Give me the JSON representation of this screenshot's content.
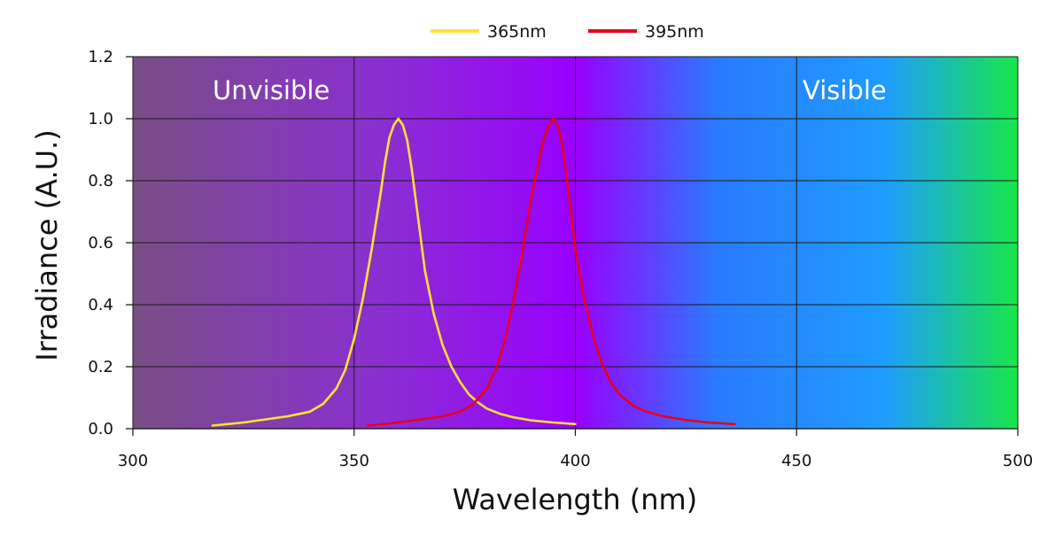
{
  "chart_data": {
    "type": "line",
    "xlabel": "Wavelength (nm)",
    "ylabel": "Irradiance (A.U.)",
    "xlim": [
      300,
      500
    ],
    "ylim": [
      0,
      1.2
    ],
    "x_ticks": [
      "300",
      "350",
      "400",
      "450",
      "500"
    ],
    "y_ticks": [
      "0.0",
      "0.2",
      "0.4",
      "0.6",
      "0.8",
      "1.0",
      "1.2"
    ],
    "grid": true,
    "legend_position": "top-center",
    "region_labels": [
      "Unvisible",
      "Visible"
    ],
    "background_gradient": [
      "#7a4e86",
      "#8a2fd0",
      "#9900ff",
      "#2a7aff",
      "#1f9cff",
      "#18e64a"
    ],
    "grid_color": "#1a1a1a",
    "series": [
      {
        "name": "365nm",
        "color": "#ffe135",
        "points": [
          [
            318,
            0.01
          ],
          [
            325,
            0.02
          ],
          [
            330,
            0.03
          ],
          [
            335,
            0.04
          ],
          [
            340,
            0.055
          ],
          [
            343,
            0.08
          ],
          [
            346,
            0.13
          ],
          [
            348,
            0.19
          ],
          [
            350,
            0.29
          ],
          [
            352,
            0.42
          ],
          [
            354,
            0.58
          ],
          [
            356,
            0.76
          ],
          [
            357,
            0.86
          ],
          [
            358,
            0.94
          ],
          [
            359,
            0.98
          ],
          [
            360,
            1.0
          ],
          [
            361,
            0.98
          ],
          [
            362,
            0.93
          ],
          [
            363,
            0.84
          ],
          [
            364,
            0.73
          ],
          [
            366,
            0.51
          ],
          [
            368,
            0.37
          ],
          [
            370,
            0.27
          ],
          [
            372,
            0.2
          ],
          [
            374,
            0.15
          ],
          [
            376,
            0.11
          ],
          [
            378,
            0.085
          ],
          [
            380,
            0.065
          ],
          [
            383,
            0.048
          ],
          [
            386,
            0.037
          ],
          [
            390,
            0.027
          ],
          [
            395,
            0.02
          ],
          [
            400,
            0.015
          ]
        ]
      },
      {
        "name": "395nm",
        "color": "#e8001c",
        "points": [
          [
            353,
            0.01
          ],
          [
            360,
            0.02
          ],
          [
            365,
            0.03
          ],
          [
            370,
            0.04
          ],
          [
            374,
            0.055
          ],
          [
            377,
            0.08
          ],
          [
            380,
            0.13
          ],
          [
            382,
            0.19
          ],
          [
            384,
            0.28
          ],
          [
            386,
            0.41
          ],
          [
            388,
            0.57
          ],
          [
            390,
            0.74
          ],
          [
            392,
            0.88
          ],
          [
            393,
            0.94
          ],
          [
            394,
            0.98
          ],
          [
            395,
            1.0
          ],
          [
            396,
            0.98
          ],
          [
            397,
            0.92
          ],
          [
            398,
            0.82
          ],
          [
            399,
            0.7
          ],
          [
            400,
            0.58
          ],
          [
            402,
            0.42
          ],
          [
            404,
            0.3
          ],
          [
            406,
            0.21
          ],
          [
            408,
            0.15
          ],
          [
            410,
            0.11
          ],
          [
            413,
            0.075
          ],
          [
            416,
            0.055
          ],
          [
            420,
            0.04
          ],
          [
            425,
            0.028
          ],
          [
            430,
            0.02
          ],
          [
            436,
            0.015
          ]
        ]
      }
    ]
  }
}
